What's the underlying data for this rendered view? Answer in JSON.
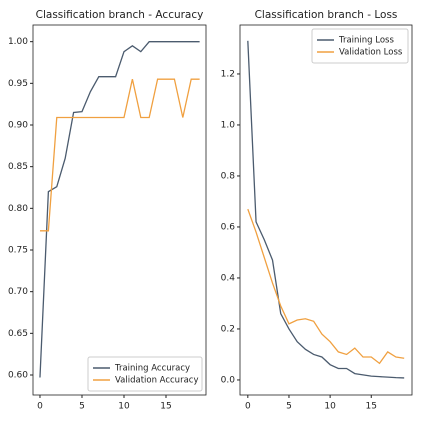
{
  "chart_data": [
    {
      "type": "line",
      "title": "Classification branch - Accuracy",
      "x": [
        0,
        1,
        2,
        3,
        4,
        5,
        6,
        7,
        8,
        9,
        10,
        11,
        12,
        13,
        14,
        15,
        16,
        17,
        18,
        19
      ],
      "series": [
        {
          "name": "Training Accuracy",
          "color": "#4b5b6e",
          "values": [
            0.597,
            0.82,
            0.826,
            0.86,
            0.915,
            0.916,
            0.94,
            0.958,
            0.958,
            0.958,
            0.988,
            0.995,
            0.988,
            1.0,
            1.0,
            1.0,
            1.0,
            1.0,
            1.0,
            1.0
          ]
        },
        {
          "name": "Validation Accuracy",
          "color": "#f0a040",
          "values": [
            0.773,
            0.773,
            0.909,
            0.909,
            0.909,
            0.909,
            0.909,
            0.909,
            0.909,
            0.909,
            0.909,
            0.955,
            0.909,
            0.909,
            0.955,
            0.955,
            0.955,
            0.909,
            0.955,
            0.955
          ]
        }
      ],
      "xlim": [
        -0.83,
        19.76
      ],
      "xticks": [
        0,
        5,
        10,
        15
      ],
      "ylim": [
        0.576,
        1.02
      ],
      "yticks": [
        {
          "value": 0.6,
          "label": "0.60"
        },
        0.65,
        {
          "value": 0.7,
          "label": "0.70"
        },
        0.75,
        {
          "value": 0.8,
          "label": "0.80"
        },
        0.85,
        {
          "value": 0.9,
          "label": "0.90"
        },
        0.95,
        {
          "value": 1.0,
          "label": "1.00"
        }
      ],
      "legend": "lower right"
    },
    {
      "type": "line",
      "title": "Classification branch - Loss",
      "x": [
        0,
        1,
        2,
        3,
        4,
        5,
        6,
        7,
        8,
        9,
        10,
        11,
        12,
        13,
        14,
        15,
        16,
        17,
        18,
        19
      ],
      "series": [
        {
          "name": "Training Loss",
          "color": "#4b5b6e",
          "values": [
            1.33,
            0.62,
            0.55,
            0.47,
            0.26,
            0.2,
            0.15,
            0.12,
            0.1,
            0.09,
            0.06,
            0.045,
            0.045,
            0.025,
            0.02,
            0.015,
            0.013,
            0.011,
            0.009,
            0.008
          ]
        },
        {
          "name": "Validation Loss",
          "color": "#f0a040",
          "values": [
            0.67,
            0.58,
            0.48,
            0.38,
            0.29,
            0.22,
            0.235,
            0.24,
            0.23,
            0.18,
            0.15,
            0.11,
            0.1,
            0.125,
            0.09,
            0.09,
            0.065,
            0.11,
            0.09,
            0.085
          ]
        }
      ],
      "xlim": [
        -0.95,
        19.95
      ],
      "xticks": [
        0,
        5,
        10,
        15
      ],
      "ylim": [
        -0.059,
        1.392
      ],
      "yticks": [
        {
          "value": 0,
          "label": "0.0"
        },
        0.2,
        0.4,
        0.6,
        0.8,
        {
          "value": 1,
          "label": "1.0"
        },
        1.2
      ],
      "legend": "upper right"
    }
  ]
}
